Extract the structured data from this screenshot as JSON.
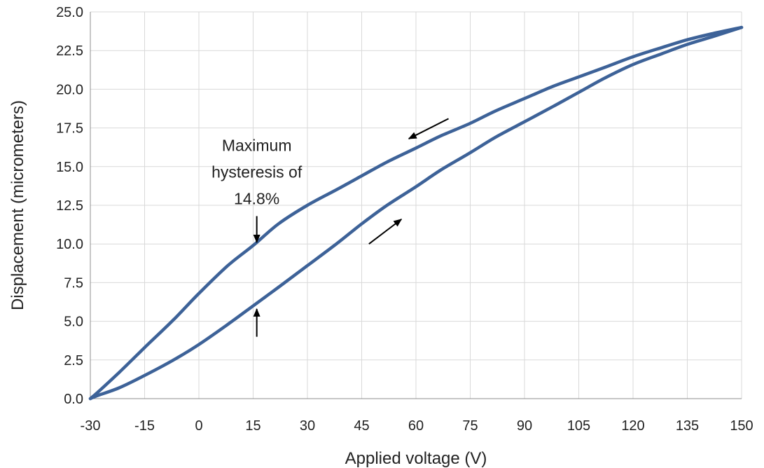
{
  "chart_data": {
    "type": "line",
    "xlabel": "Applied voltage (V)",
    "ylabel": "Displacement (micrometers)",
    "xlim": [
      -30,
      150
    ],
    "ylim": [
      0,
      25
    ],
    "xticks": [
      -30,
      -15,
      0,
      15,
      30,
      45,
      60,
      75,
      90,
      105,
      120,
      135,
      150
    ],
    "yticks": [
      0,
      2.5,
      5,
      7.5,
      10,
      12.5,
      15,
      17.5,
      20,
      22.5,
      25
    ],
    "xtick_labels": [
      "-30",
      "-15",
      "0",
      "15",
      "30",
      "45",
      "60",
      "75",
      "90",
      "105",
      "120",
      "135",
      "150"
    ],
    "ytick_labels": [
      "0.0",
      "2.5",
      "5.0",
      "7.5",
      "10.0",
      "12.5",
      "15.0",
      "17.5",
      "20.0",
      "22.5",
      "25.0"
    ],
    "grid": true,
    "line_color": "#3d6298",
    "arrow_color": "#000000",
    "series": [
      {
        "x": [
          -30,
          -28,
          -22,
          -15,
          -7,
          0,
          8,
          15,
          22,
          30,
          38,
          45,
          52,
          60,
          67,
          75,
          82,
          90,
          98,
          105,
          112,
          120,
          128,
          135,
          142,
          150
        ],
        "y": [
          0,
          0.2,
          0.7,
          1.5,
          2.5,
          3.5,
          4.8,
          6.0,
          7.2,
          8.6,
          10.0,
          11.3,
          12.5,
          13.7,
          14.8,
          15.9,
          16.9,
          17.9,
          18.9,
          19.8,
          20.7,
          21.6,
          22.3,
          22.9,
          23.4,
          24.0
        ]
      },
      {
        "x": [
          150,
          142,
          135,
          128,
          120,
          112,
          105,
          98,
          90,
          82,
          75,
          67,
          60,
          52,
          45,
          38,
          30,
          22,
          15,
          8,
          0,
          -7,
          -15,
          -22,
          -28,
          -30
        ],
        "y": [
          24.0,
          23.6,
          23.2,
          22.7,
          22.1,
          21.4,
          20.8,
          20.2,
          19.4,
          18.6,
          17.8,
          17.0,
          16.2,
          15.3,
          14.4,
          13.5,
          12.5,
          11.3,
          9.9,
          8.6,
          6.8,
          5.1,
          3.3,
          1.7,
          0.4,
          0
        ]
      }
    ],
    "annotations": [
      {
        "lines": [
          "Maximum",
          "hysteresis of",
          "14.8%"
        ],
        "x": 16,
        "y_top": 16.0
      }
    ],
    "arrows": [
      {
        "from": [
          16,
          11.8
        ],
        "to": [
          16,
          10.1
        ]
      },
      {
        "from": [
          16,
          4.0
        ],
        "to": [
          16,
          5.8
        ]
      },
      {
        "from": [
          69,
          18.1
        ],
        "to": [
          58,
          16.8
        ]
      },
      {
        "from": [
          47,
          10.0
        ],
        "to": [
          56,
          11.6
        ]
      }
    ]
  }
}
